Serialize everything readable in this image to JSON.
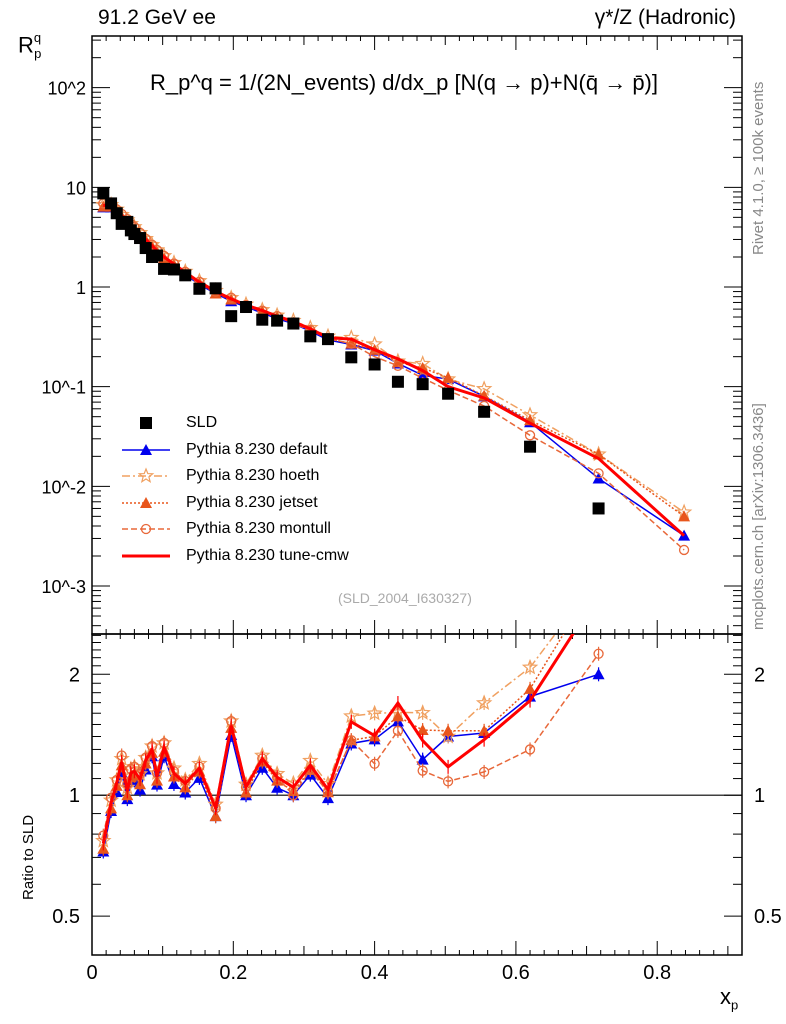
{
  "chart_data": [
    {
      "type": "line",
      "panel": "main",
      "title_left": "91.2 GeV ee",
      "title_right": "γ*/Z (Hadronic)",
      "formula": "R_p^q = 1/(2N_events) d/dx_p [N(q → p)+N(q̄ → p̄)]",
      "ylabel": "R",
      "ylabel_sup": "q",
      "ylabel_sub": "p",
      "yscale": "log",
      "ylim": [
        0.00033,
        330
      ],
      "xlim": [
        0,
        0.92
      ],
      "ytick_labels": [
        "10^-3",
        "10^-2",
        "10^-1",
        "1",
        "10",
        "10^2"
      ],
      "reference": "(SLD_2004_I630327)",
      "legend_position": "lower-left",
      "x": [
        0.016,
        0.027,
        0.035,
        0.042,
        0.05,
        0.055,
        0.06,
        0.068,
        0.076,
        0.085,
        0.092,
        0.102,
        0.116,
        0.132,
        0.152,
        0.175,
        0.197,
        0.218,
        0.241,
        0.262,
        0.285,
        0.309,
        0.334,
        0.367,
        0.4,
        0.433,
        0.468,
        0.504,
        0.555,
        0.62,
        0.717,
        0.838
      ],
      "series": [
        {
          "name": "SLD",
          "color": "#000000",
          "marker": "square",
          "values": [
            8.7,
            6.9,
            5.5,
            4.3,
            4.5,
            3.7,
            3.4,
            3.1,
            2.46,
            2.0,
            2.07,
            1.52,
            1.5,
            1.31,
            0.96,
            0.97,
            0.51,
            0.63,
            0.47,
            0.46,
            0.43,
            0.32,
            0.3,
            0.197,
            0.167,
            0.112,
            0.106,
            0.085,
            0.056,
            0.025,
            0.006,
            null
          ]
        },
        {
          "name": "Pythia 8.230 default",
          "color": "#0000ee",
          "marker": "triangle",
          "dash": "",
          "values": [
            6.3,
            6.3,
            5.6,
            4.9,
            4.4,
            4.0,
            3.7,
            3.2,
            2.85,
            2.5,
            2.2,
            1.9,
            1.6,
            1.33,
            1.06,
            0.86,
            0.72,
            0.63,
            0.55,
            0.48,
            0.43,
            0.36,
            0.295,
            0.265,
            0.23,
            0.171,
            0.13,
            0.119,
            0.08,
            0.044,
            0.012,
            0.0032
          ]
        },
        {
          "name": "Pythia 8.230 hoeth",
          "color": "#f0a060",
          "marker": "star",
          "dash": "8,3,2,3",
          "values": [
            6.7,
            6.7,
            6.0,
            5.3,
            4.7,
            4.3,
            4.0,
            3.5,
            3.05,
            2.65,
            2.35,
            2.05,
            1.75,
            1.43,
            1.15,
            0.92,
            0.78,
            0.67,
            0.59,
            0.52,
            0.46,
            0.39,
            0.32,
            0.31,
            0.267,
            0.18,
            0.17,
            0.119,
            0.095,
            0.052,
            0.021,
            0.0055
          ]
        },
        {
          "name": "Pythia 8.230 jetset",
          "color": "#e8561c",
          "marker": "triangle",
          "dash": "2,2",
          "values": [
            6.4,
            6.4,
            5.8,
            5.1,
            4.5,
            4.1,
            3.8,
            3.3,
            2.95,
            2.55,
            2.25,
            1.95,
            1.67,
            1.37,
            1.1,
            0.86,
            0.75,
            0.64,
            0.57,
            0.5,
            0.44,
            0.37,
            0.305,
            0.27,
            0.234,
            0.176,
            0.154,
            0.123,
            0.081,
            0.046,
            0.021,
            0.005
          ]
        },
        {
          "name": "Pythia 8.230 montull",
          "color": "#e8683a",
          "marker": "circle",
          "dash": "6,3",
          "values": [
            6.9,
            6.8,
            6.0,
            5.4,
            4.8,
            4.3,
            4.0,
            3.5,
            3.05,
            2.65,
            2.35,
            2.05,
            1.72,
            1.42,
            1.13,
            0.9,
            0.78,
            0.66,
            0.58,
            0.51,
            0.43,
            0.37,
            0.305,
            0.27,
            0.2,
            0.162,
            0.122,
            0.092,
            0.064,
            0.0325,
            0.0135,
            0.0023
          ]
        },
        {
          "name": "Pythia 8.230 tune-cmw",
          "color": "#ff0000",
          "marker": "none",
          "dash": "",
          "values": [
            6.6,
            6.6,
            5.9,
            5.2,
            4.6,
            4.2,
            3.9,
            3.4,
            3.0,
            2.6,
            2.3,
            2.0,
            1.7,
            1.4,
            1.12,
            0.9,
            0.76,
            0.66,
            0.58,
            0.51,
            0.45,
            0.38,
            0.31,
            0.3,
            0.235,
            0.19,
            0.145,
            0.1,
            0.077,
            0.043,
            0.019,
            0.0032
          ]
        }
      ]
    },
    {
      "type": "line",
      "panel": "ratio",
      "ylabel": "Ratio to SLD",
      "xlabel": "x",
      "xlabel_sub": "p",
      "yscale": "log",
      "ylim": [
        0.4,
        2.52
      ],
      "ytick_labels": [
        "0.5",
        "1",
        "2"
      ],
      "xtick_labels": [
        "0",
        "0.2",
        "0.4",
        "0.6",
        "0.8"
      ],
      "note": "ratio = model / SLD"
    }
  ],
  "side_text": {
    "rivet": "Rivet 4.1.0, ≥ 100k events",
    "mcplots": "mcplots.cern.ch [arXiv:1306.3436]"
  }
}
